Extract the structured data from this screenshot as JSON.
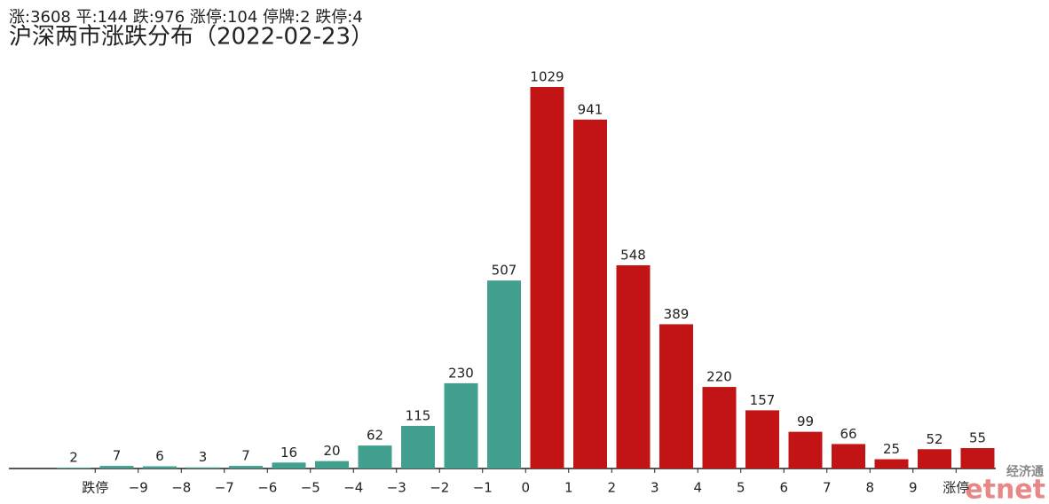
{
  "chart_data": {
    "type": "bar",
    "subtitle": "涨:3608 平:144 跌:976 涨停:104 停牌:2 跌停:4",
    "title": "沪深两市涨跌分布（2022-02-23）",
    "values": [
      2,
      7,
      6,
      3,
      7,
      16,
      20,
      62,
      115,
      230,
      507,
      1029,
      941,
      548,
      389,
      220,
      157,
      99,
      66,
      25,
      52,
      55
    ],
    "colors": [
      "#43a08f",
      "#43a08f",
      "#43a08f",
      "#43a08f",
      "#43a08f",
      "#43a08f",
      "#43a08f",
      "#43a08f",
      "#43a08f",
      "#43a08f",
      "#43a08f",
      "#c21414",
      "#c21414",
      "#c21414",
      "#c21414",
      "#c21414",
      "#c21414",
      "#c21414",
      "#c21414",
      "#c21414",
      "#c21414",
      "#c21414"
    ],
    "xticks": [
      "跌停",
      "−9",
      "−8",
      "−7",
      "−6",
      "−5",
      "−4",
      "−3",
      "−2",
      "−1",
      "0",
      "1",
      "2",
      "3",
      "4",
      "5",
      "6",
      "7",
      "8",
      "9",
      "涨停"
    ],
    "ylim": [
      0,
      1029
    ],
    "watermark": {
      "top": "经济通",
      "bottom": "etnet"
    }
  }
}
